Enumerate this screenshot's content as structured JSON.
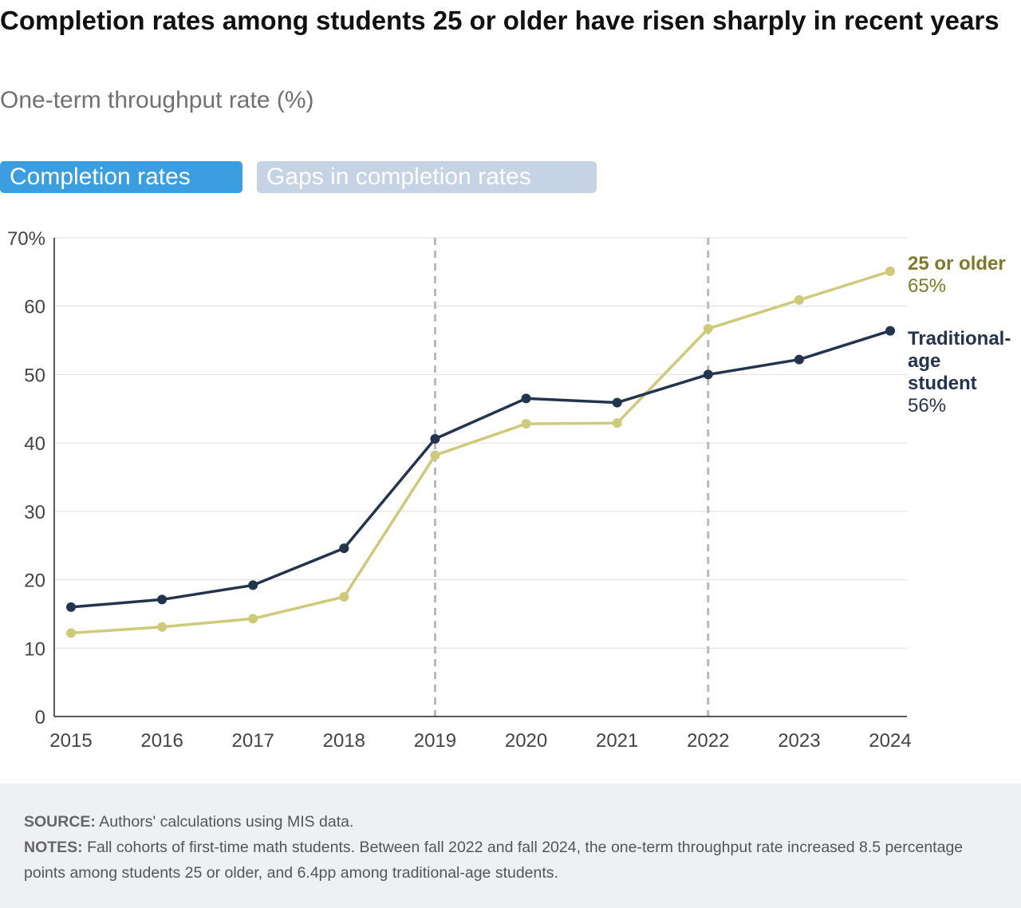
{
  "header": {
    "title": "Completion rates among students 25 or older have risen sharply in recent years",
    "subtitle": "One-term throughput rate (%)"
  },
  "tabs": [
    {
      "label": "Completion rates",
      "active": true
    },
    {
      "label": "Gaps in completion rates",
      "active": false
    }
  ],
  "chart_data": {
    "type": "line",
    "x": [
      2015,
      2016,
      2017,
      2018,
      2019,
      2020,
      2021,
      2022,
      2023,
      2024
    ],
    "ylim": [
      0,
      70
    ],
    "yticks": [
      0,
      10,
      20,
      30,
      40,
      50,
      60,
      70
    ],
    "ytick_labels": [
      "0",
      "10",
      "20",
      "30",
      "40",
      "50",
      "60",
      "70%"
    ],
    "grid": "horizontal",
    "reference_lines_x": [
      2019,
      2022
    ],
    "series": [
      {
        "name": "25 or older",
        "end_label": "65%",
        "color": "#cdca7a",
        "label_color": "#7d7a2a",
        "values": [
          12.2,
          13.1,
          14.3,
          17.5,
          38.2,
          42.8,
          42.9,
          56.7,
          60.9,
          65.1
        ]
      },
      {
        "name": "Traditional-age student",
        "name_lines": [
          "Traditional-",
          "age",
          "student"
        ],
        "end_label": "56%",
        "color": "#23344f",
        "label_color": "#23344f",
        "values": [
          16.0,
          17.1,
          19.2,
          24.6,
          40.6,
          46.5,
          45.9,
          50.0,
          52.2,
          56.4
        ]
      }
    ]
  },
  "footer": {
    "source_label": "SOURCE:",
    "source_text": " Authors' calculations using MIS data.",
    "notes_label": "NOTES:",
    "notes_text": " Fall cohorts of first-time math students. Between fall 2022 and fall 2024, the one-term throughput rate increased 8.5 percentage points among students 25 or older, and 6.4pp among traditional-age students."
  }
}
